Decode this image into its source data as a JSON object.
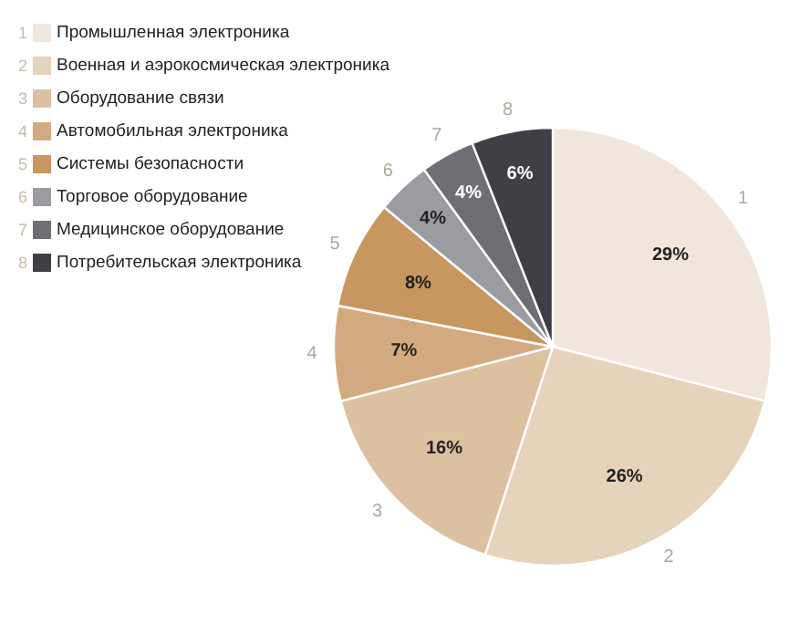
{
  "chart_data": {
    "type": "pie",
    "categories": [
      "Промышленная электроника",
      "Военная и аэрокосмическая электроника",
      "Оборудование связи",
      "Автомобильная электроника",
      "Системы безопасности",
      "Торговое оборудование",
      "Медицинское оборудование",
      "Потребительская электроника"
    ],
    "values": [
      29,
      26,
      16,
      7,
      8,
      4,
      4,
      6
    ],
    "colors": [
      "#f0e6dc",
      "#e6d3bb",
      "#dcc1a0",
      "#d3aa80",
      "#c8965f",
      "#9a9ca1",
      "#6d6f74",
      "#3e4045"
    ],
    "value_labels": [
      "29%",
      "26%",
      "16%",
      "7%",
      "8%",
      "4%",
      "4%",
      "6%"
    ],
    "annotations": [
      "1",
      "2",
      "3",
      "4",
      "5",
      "6",
      "7",
      "8"
    ],
    "legend": "top left"
  }
}
